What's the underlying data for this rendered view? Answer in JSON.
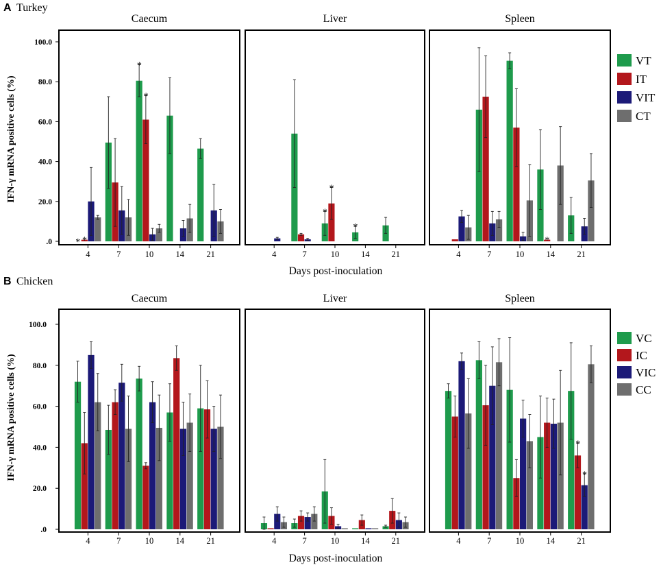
{
  "figure": {
    "rows": [
      {
        "label": "A",
        "species": "Turkey",
        "ylabel": "IFN-γ mRNA positive cells (%)",
        "xlabel": "Days post-inoculation",
        "yticks": [
          "100.0",
          "80.0",
          "60.0",
          "40.0",
          "20.0",
          ".0"
        ],
        "legend": [
          "VT",
          "IT",
          "VIT",
          "CT"
        ]
      },
      {
        "label": "B",
        "species": "Chicken",
        "ylabel": "IFN-γ mRNA positive cells (%)",
        "xlabel": "Days post-inoculation",
        "yticks": [
          "100.0",
          "80.0",
          "60.0",
          "40.0",
          "20.0",
          ".0"
        ],
        "legend": [
          "VC",
          "IC",
          "VIC",
          "CC"
        ]
      }
    ],
    "colors": {
      "series1": "#1e9b4c",
      "series2": "#b3171c",
      "series3": "#1c1a78",
      "series4": "#6e6e6e"
    }
  },
  "chart_data": [
    {
      "type": "bar",
      "group": "Turkey",
      "title": "Caecum",
      "categories": [
        "4",
        "7",
        "10",
        "14",
        "21"
      ],
      "ylim": [
        0,
        100
      ],
      "xlabel": "Days post-inoculation",
      "ylabel": "IFN-γ mRNA positive cells (%)",
      "series": [
        {
          "name": "VT",
          "values": [
            0,
            49.5,
            80.5,
            63,
            46.5
          ],
          "errors": [
            0,
            23,
            8,
            19,
            5
          ]
        },
        {
          "name": "IT",
          "values": [
            0.8,
            29.5,
            61,
            0,
            0
          ],
          "errors": [
            0,
            22,
            12,
            0,
            0
          ]
        },
        {
          "name": "VIT",
          "values": [
            20,
            15.5,
            3.5,
            6.5,
            15.5
          ],
          "errors": [
            17,
            12,
            3,
            4,
            13
          ]
        },
        {
          "name": "CT",
          "values": [
            12,
            12,
            6.5,
            11.5,
            10
          ],
          "errors": [
            1,
            9,
            2,
            7,
            6
          ]
        }
      ],
      "annotations": [
        {
          "category": "4",
          "series": "VT",
          "text": "*"
        },
        {
          "category": "4",
          "series": "IT",
          "text": "*"
        },
        {
          "category": "10",
          "series": "VT",
          "text": "*"
        },
        {
          "category": "10",
          "series": "IT",
          "text": "*"
        }
      ]
    },
    {
      "type": "bar",
      "group": "Turkey",
      "title": "Liver",
      "categories": [
        "4",
        "7",
        "10",
        "14",
        "21"
      ],
      "ylim": [
        0,
        100
      ],
      "xlabel": "Days post-inoculation",
      "series": [
        {
          "name": "VT",
          "values": [
            0,
            54,
            9,
            4.5,
            8
          ],
          "errors": [
            0,
            27,
            6,
            3,
            4
          ]
        },
        {
          "name": "IT",
          "values": [
            0,
            3.5,
            19,
            0,
            0
          ],
          "errors": [
            0,
            0.5,
            8,
            0,
            0
          ]
        },
        {
          "name": "VIT",
          "values": [
            1.5,
            1,
            0,
            0,
            0
          ],
          "errors": [
            0.5,
            0.5,
            0,
            0,
            0
          ]
        },
        {
          "name": "CT",
          "values": [
            0,
            0,
            0,
            0,
            0
          ],
          "errors": [
            0,
            0,
            0,
            0,
            0
          ]
        }
      ],
      "annotations": [
        {
          "category": "10",
          "series": "VT",
          "text": "*"
        },
        {
          "category": "10",
          "series": "IT",
          "text": "*"
        },
        {
          "category": "14",
          "series": "VT",
          "text": "*"
        }
      ]
    },
    {
      "type": "bar",
      "group": "Turkey",
      "title": "Spleen",
      "categories": [
        "4",
        "7",
        "10",
        "14",
        "21"
      ],
      "ylim": [
        0,
        100
      ],
      "xlabel": "Days post-inoculation",
      "series": [
        {
          "name": "VT",
          "values": [
            0,
            66,
            90.5,
            36,
            13
          ],
          "errors": [
            0,
            31,
            4,
            20,
            9
          ]
        },
        {
          "name": "IT",
          "values": [
            1,
            72.5,
            57,
            0.8,
            0
          ],
          "errors": [
            0,
            20.5,
            19.5,
            0,
            0
          ]
        },
        {
          "name": "VIT",
          "values": [
            12.5,
            9,
            2.5,
            0,
            7.5
          ],
          "errors": [
            3,
            6,
            2,
            0,
            4
          ]
        },
        {
          "name": "CT",
          "values": [
            7,
            11,
            20.5,
            38,
            30.5
          ],
          "errors": [
            6,
            4,
            18,
            19.5,
            13.5
          ]
        }
      ],
      "annotations": [
        {
          "category": "14",
          "series": "IT",
          "text": "*"
        }
      ]
    },
    {
      "type": "bar",
      "group": "Chicken",
      "title": "Caecum",
      "categories": [
        "4",
        "7",
        "10",
        "14",
        "21"
      ],
      "ylim": [
        0,
        100
      ],
      "xlabel": "Days post-inoculation",
      "ylabel": "IFN-γ mRNA positive cells (%)",
      "series": [
        {
          "name": "VC",
          "values": [
            72,
            48.5,
            73.5,
            57,
            59
          ],
          "errors": [
            10,
            12,
            6,
            14,
            21
          ]
        },
        {
          "name": "IC",
          "values": [
            42,
            62,
            31,
            83.5,
            58.5
          ],
          "errors": [
            15,
            6,
            1.5,
            6,
            14
          ]
        },
        {
          "name": "VIC",
          "values": [
            85,
            71.5,
            62,
            49,
            49
          ],
          "errors": [
            6.5,
            9,
            10,
            13,
            11
          ]
        },
        {
          "name": "CC",
          "values": [
            62,
            49,
            49.5,
            52,
            50
          ],
          "errors": [
            14,
            16,
            16,
            14,
            15.5
          ]
        }
      ],
      "annotations": []
    },
    {
      "type": "bar",
      "group": "Chicken",
      "title": "Liver",
      "categories": [
        "4",
        "7",
        "10",
        "14",
        "21"
      ],
      "ylim": [
        0,
        100
      ],
      "xlabel": "Days post-inoculation",
      "series": [
        {
          "name": "VC",
          "values": [
            3,
            3,
            18.5,
            0.5,
            1.5
          ],
          "errors": [
            3,
            2,
            15.5,
            0,
            0.5
          ]
        },
        {
          "name": "IC",
          "values": [
            0.5,
            6.5,
            6.5,
            4.5,
            9
          ],
          "errors": [
            0,
            2.5,
            4,
            2.5,
            6
          ]
        },
        {
          "name": "VIC",
          "values": [
            7.5,
            6,
            1.5,
            0.5,
            4.5
          ],
          "errors": [
            3.5,
            2,
            1,
            0,
            3.5
          ]
        },
        {
          "name": "CC",
          "values": [
            3.5,
            7.5,
            0.5,
            0.5,
            3.5
          ],
          "errors": [
            2.5,
            3.5,
            0,
            0,
            2.5
          ]
        }
      ],
      "annotations": []
    },
    {
      "type": "bar",
      "group": "Chicken",
      "title": "Spleen",
      "categories": [
        "4",
        "7",
        "10",
        "14",
        "21"
      ],
      "ylim": [
        0,
        100
      ],
      "xlabel": "Days post-inoculation",
      "series": [
        {
          "name": "VC",
          "values": [
            67.5,
            82.5,
            68,
            45,
            67.5
          ],
          "errors": [
            3.5,
            9,
            25.5,
            20,
            23.5
          ]
        },
        {
          "name": "IC",
          "values": [
            55,
            60.5,
            25,
            52,
            36
          ],
          "errors": [
            10,
            19.5,
            9,
            12,
            6
          ]
        },
        {
          "name": "VIC",
          "values": [
            82,
            70,
            54,
            51.5,
            21.5
          ],
          "errors": [
            4,
            19,
            9,
            12,
            5.5
          ]
        },
        {
          "name": "CC",
          "values": [
            56.5,
            81.5,
            43,
            52,
            80.5
          ],
          "errors": [
            17,
            11.5,
            13,
            25.5,
            9
          ]
        }
      ],
      "annotations": [
        {
          "category": "21",
          "series": "IC",
          "text": "*"
        },
        {
          "category": "21",
          "series": "VIC",
          "text": "*"
        }
      ]
    }
  ]
}
